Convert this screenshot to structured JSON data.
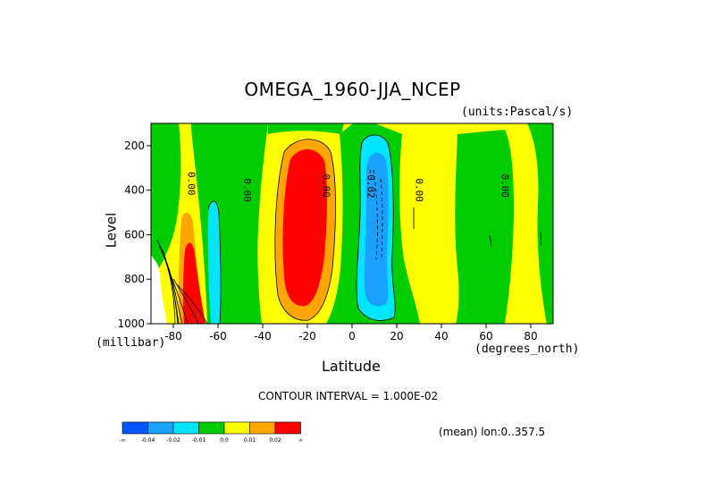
{
  "chart_data": {
    "type": "filled-contour",
    "title": "OMEGA_1960-JJA_NCEP",
    "units": "(units:Pascal/s)",
    "xlabel": "Latitude",
    "x_unit": "(degrees_north)",
    "ylabel": "Level",
    "y_unit": "(millibar)",
    "xlim": [
      -90,
      90
    ],
    "ylim": [
      100,
      1000
    ],
    "y_reversed": true,
    "x_ticks": [
      -80,
      -60,
      -40,
      -20,
      0,
      20,
      40,
      60,
      80
    ],
    "y_ticks": [
      200,
      400,
      600,
      800,
      1000
    ],
    "contour_interval_text": "CONTOUR INTERVAL = 1.000E-02",
    "mean_text": "(mean) lon:0..357.5",
    "contour_labels": [
      "0.00",
      "0.00",
      "0.00",
      "-0.02",
      "0.00",
      "0.00"
    ],
    "colorbar": {
      "colors": [
        "#0055ff",
        "#1aa0ff",
        "#00e5ff",
        "#00cc00",
        "#ffff00",
        "#ffa500",
        "#ff0000"
      ],
      "labels": [
        "-∞",
        "-0.04",
        "-0.02",
        "-0.01",
        "0.0",
        "0.01",
        "0.02",
        "∞"
      ]
    },
    "colors": {
      "pos_high": "#ff0000",
      "pos_mid": "#ffa500",
      "pos_low": "#ffff00",
      "neg_low": "#00cc00",
      "neg_mid": "#00e5ff",
      "neg_high": "#1aa0ff",
      "missing": "#ffffff"
    }
  }
}
